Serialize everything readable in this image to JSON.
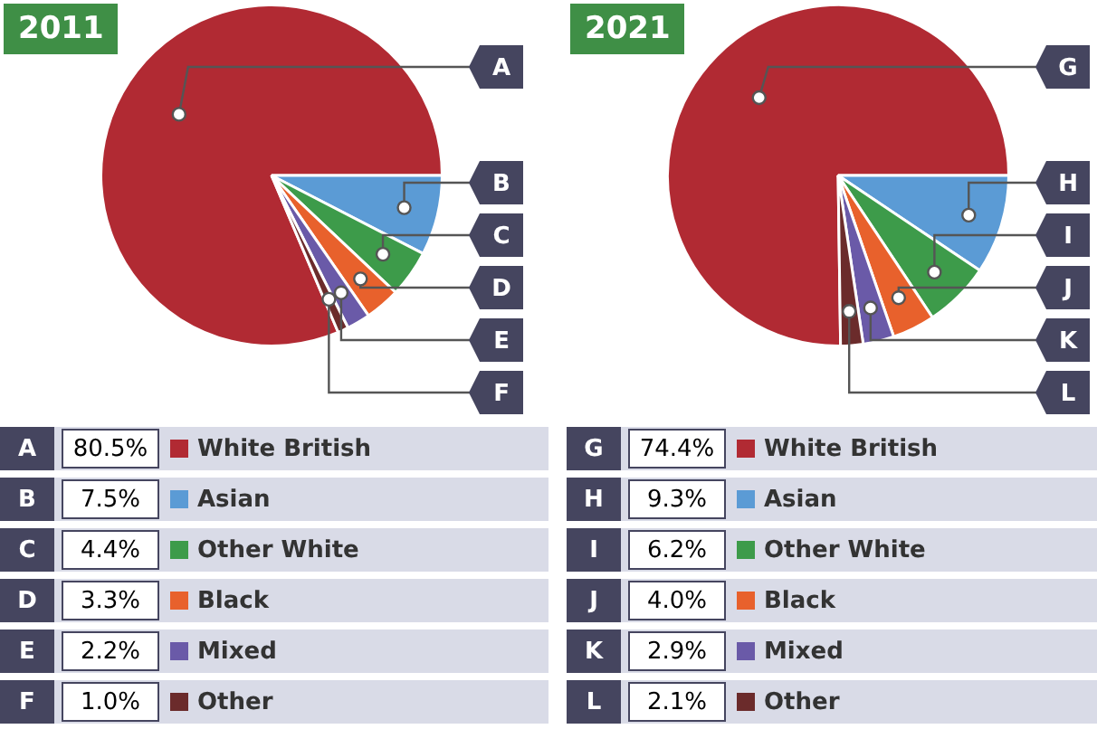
{
  "chart_data": [
    {
      "type": "pie",
      "title": "2011",
      "categories": [
        "White British",
        "Asian",
        "Other White",
        "Black",
        "Mixed",
        "Other"
      ],
      "values": [
        80.5,
        7.5,
        4.4,
        3.3,
        2.2,
        1.0
      ],
      "value_labels": [
        "80.5%",
        "7.5%",
        "4.4%",
        "3.3%",
        "2.2%",
        "1.0%"
      ],
      "colors": [
        "#b12a33",
        "#5b9bd5",
        "#3d9b4a",
        "#e8612c",
        "#6a5aa8",
        "#6b2b2b"
      ],
      "annotations": [
        "A",
        "B",
        "C",
        "D",
        "E",
        "F"
      ],
      "legend": "bottom"
    },
    {
      "type": "pie",
      "title": "2021",
      "categories": [
        "White British",
        "Asian",
        "Other White",
        "Black",
        "Mixed",
        "Other"
      ],
      "values": [
        74.4,
        9.3,
        6.2,
        4.0,
        2.9,
        2.1
      ],
      "value_labels": [
        "74.4%",
        "9.3%",
        "6.2%",
        "4.0%",
        "2.9%",
        "2.1%"
      ],
      "colors": [
        "#b12a33",
        "#5b9bd5",
        "#3d9b4a",
        "#e8612c",
        "#6a5aa8",
        "#6b2b2b"
      ],
      "annotations": [
        "G",
        "H",
        "I",
        "J",
        "K",
        "L"
      ],
      "legend": "bottom"
    }
  ]
}
